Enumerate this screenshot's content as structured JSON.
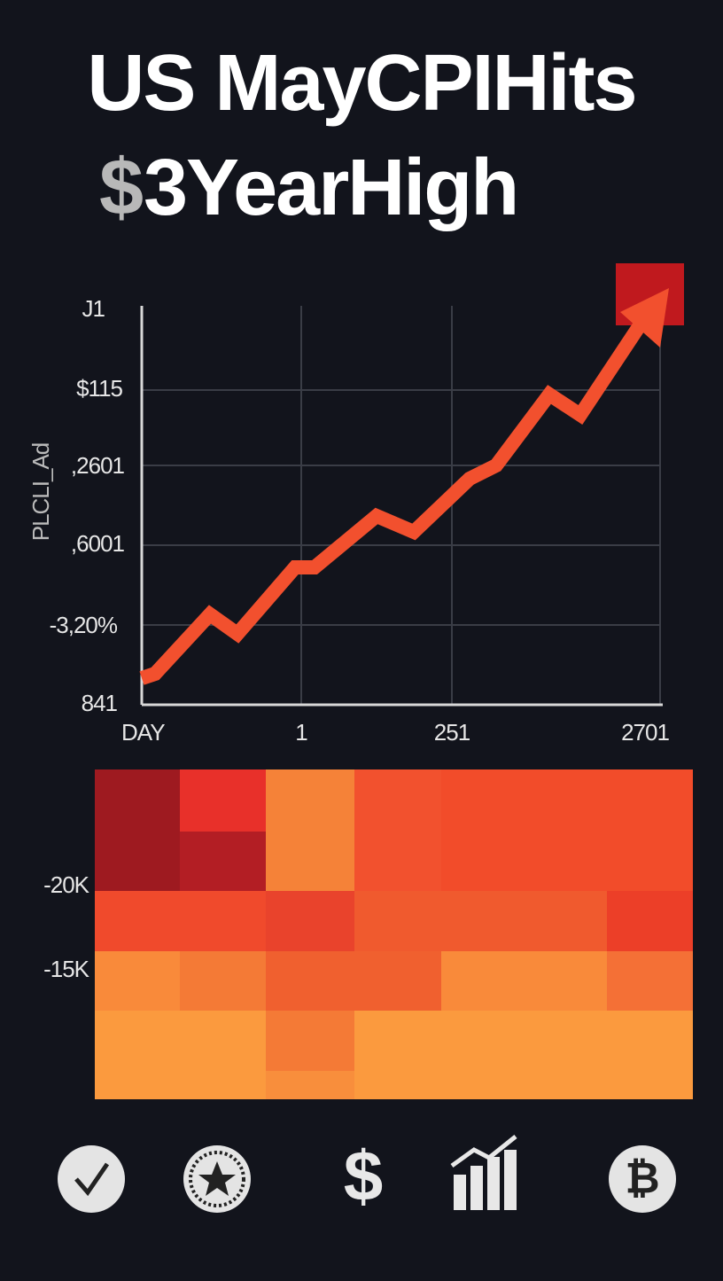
{
  "header": {
    "title_line1": "US MayCPIHits",
    "title_line2_symbol": "$",
    "title_line2": "3YearHigh"
  },
  "line_panel": {
    "y_axis_title": "PLCLI_Ad",
    "y_labels": [
      "J1",
      "$115",
      ",2601",
      ",6001",
      "-3,20%",
      "841"
    ],
    "x_labels": [
      "DAY",
      "1",
      "251",
      "2701"
    ]
  },
  "heatmap": {
    "y_labels": [
      "-20K",
      "-15K"
    ]
  },
  "icon_row": {
    "dollar": "$",
    "bitcoin": "₿"
  }
}
